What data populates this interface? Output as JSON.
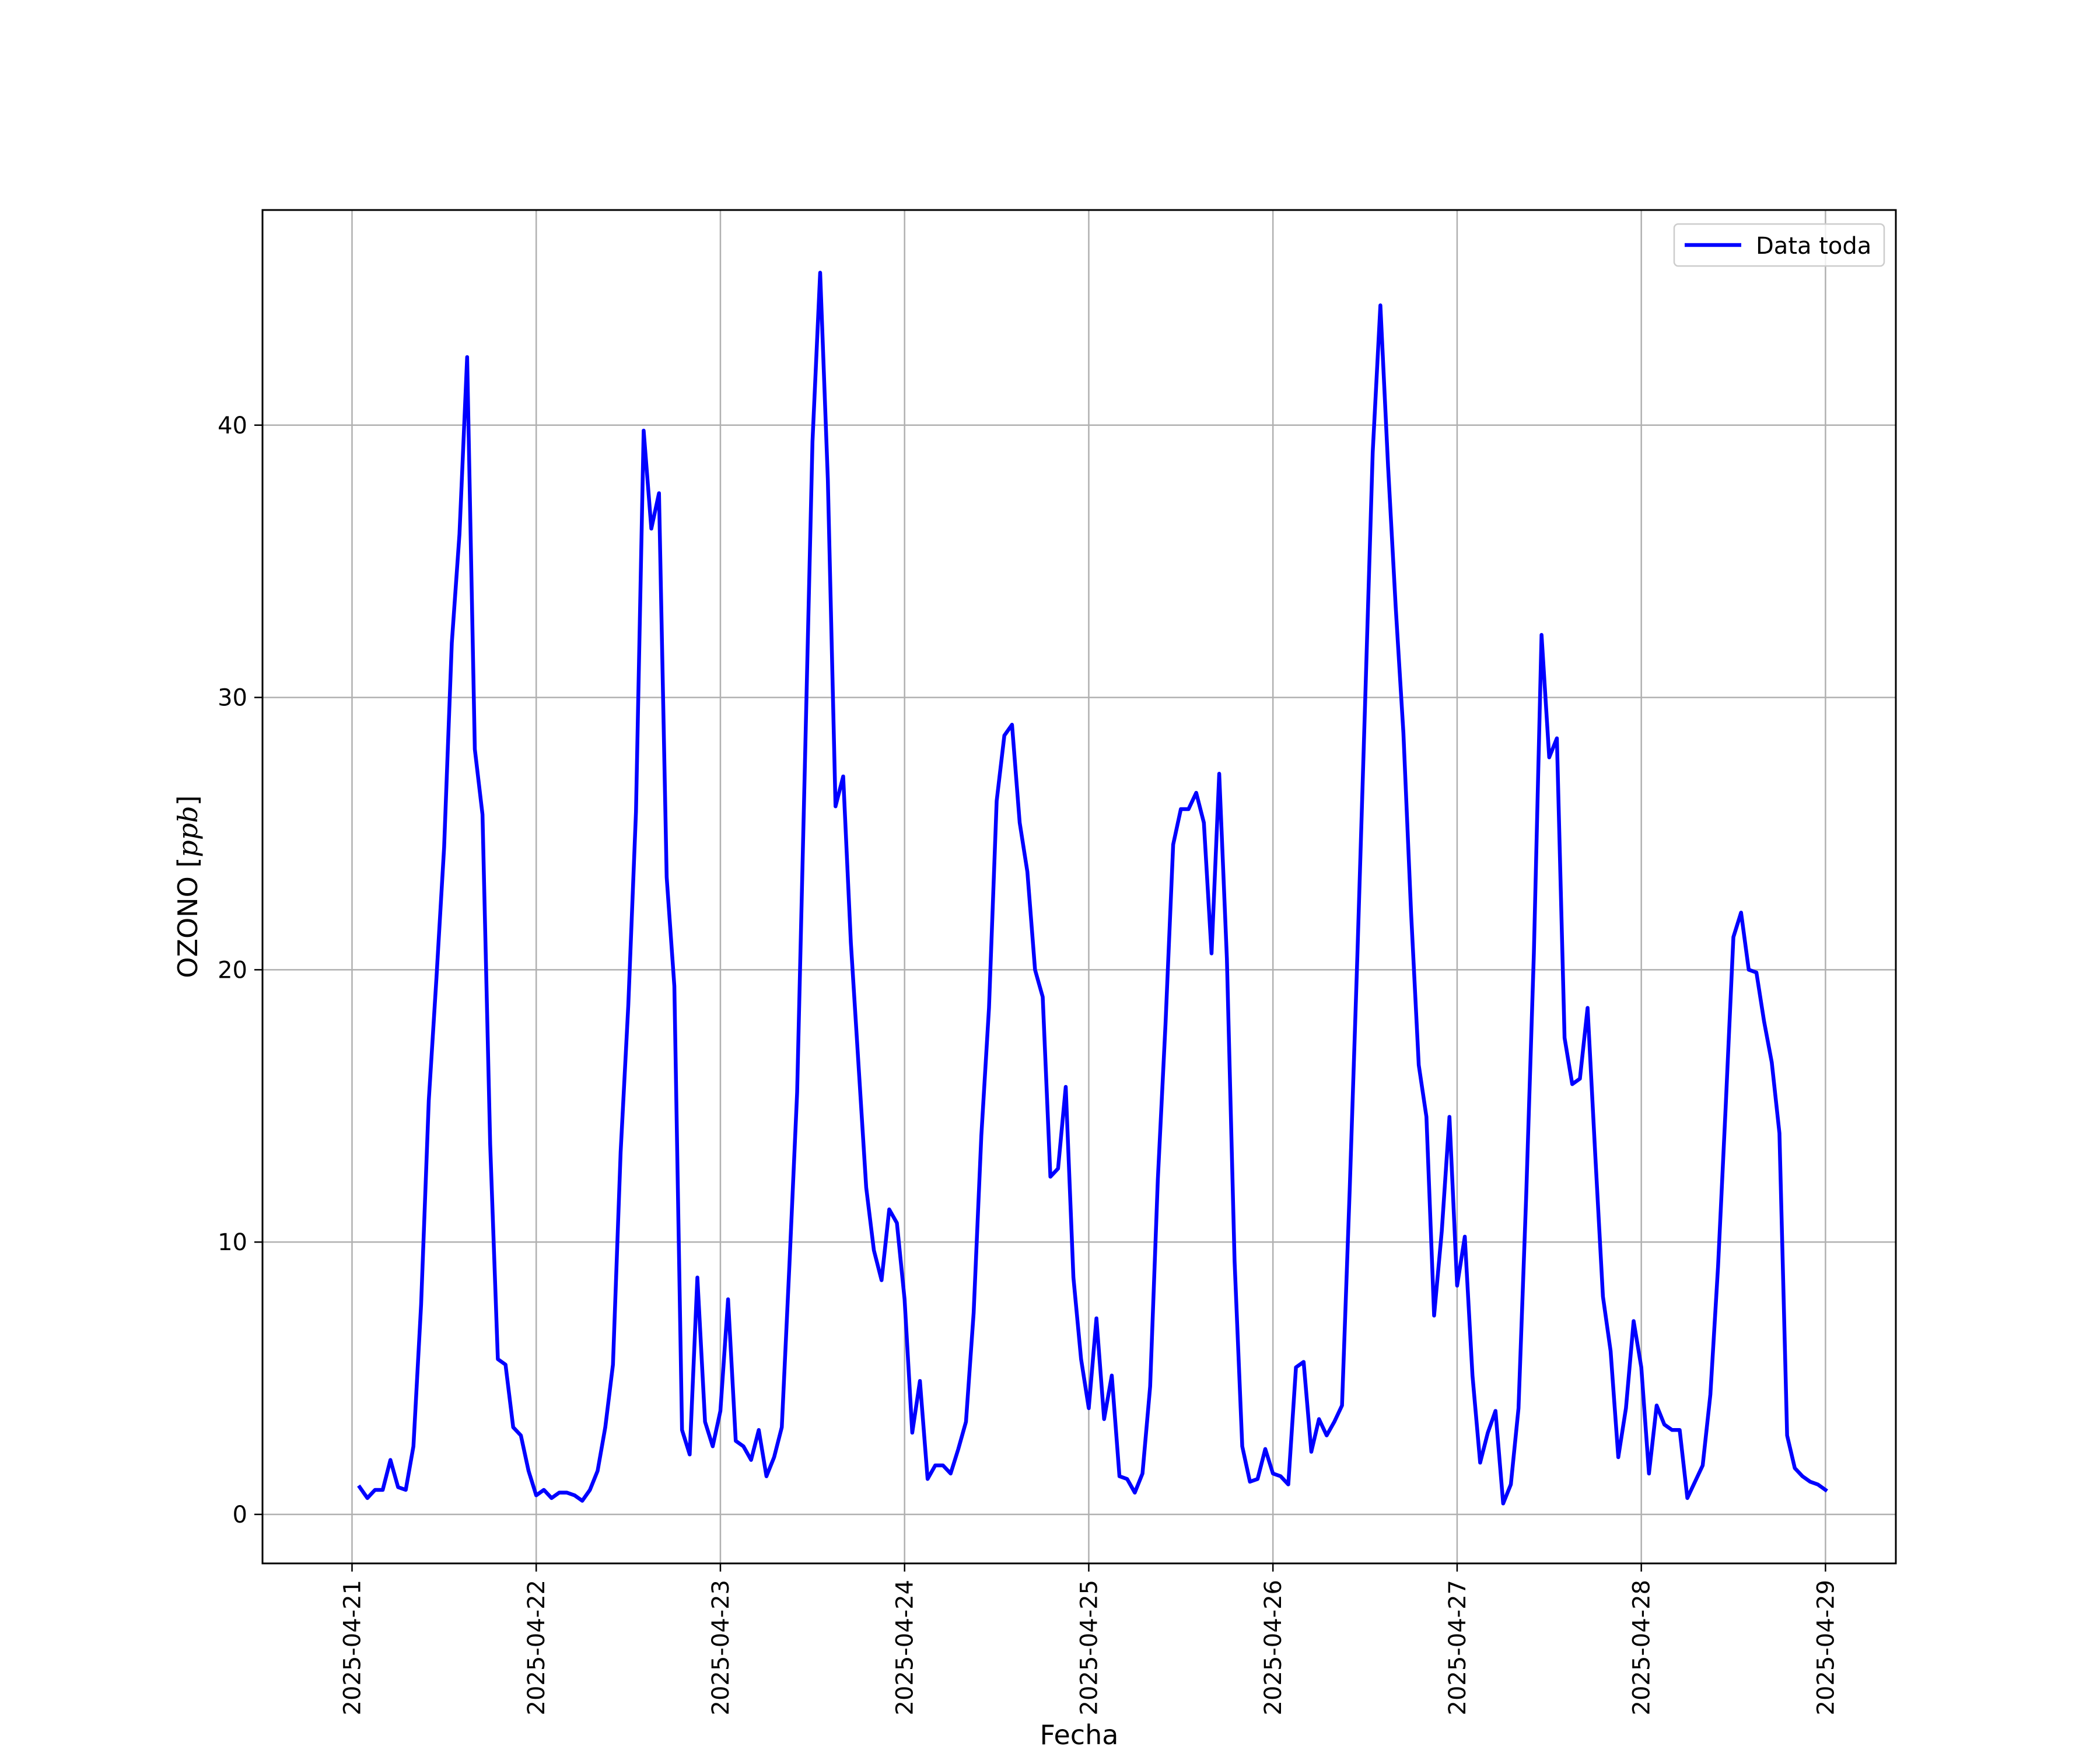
{
  "chart_data": {
    "type": "line",
    "title": "",
    "xlabel": "Fecha",
    "ylabel_text": "OZONO ",
    "ylabel_unit": "ppb",
    "x_ticks": [
      "2025-04-21",
      "2025-04-22",
      "2025-04-23",
      "2025-04-24",
      "2025-04-25",
      "2025-04-26",
      "2025-04-27",
      "2025-04-28",
      "2025-04-29"
    ],
    "y_ticks": [
      0,
      10,
      20,
      30,
      40
    ],
    "xlim": [
      "2025-04-20 12:20",
      "2025-04-29 09:10"
    ],
    "ylim": [
      -1.8,
      47.9
    ],
    "grid": true,
    "legend_position": "upper right",
    "series": [
      {
        "name": "Data toda",
        "color": "#0000ff",
        "x_start": "2025-04-21 01:00",
        "step_hours": 1,
        "values": [
          1.0,
          0.6,
          0.9,
          0.9,
          2.0,
          1.0,
          0.9,
          2.5,
          7.7,
          15.2,
          19.7,
          24.5,
          32.0,
          36.0,
          42.5,
          28.1,
          25.7,
          13.6,
          5.7,
          5.5,
          3.2,
          2.9,
          1.6,
          0.7,
          0.9,
          0.6,
          0.8,
          0.8,
          0.7,
          0.5,
          0.9,
          1.6,
          3.2,
          5.5,
          13.3,
          18.7,
          25.8,
          39.8,
          36.2,
          37.5,
          23.4,
          19.4,
          3.1,
          2.2,
          8.7,
          3.4,
          2.5,
          3.8,
          7.9,
          2.7,
          2.5,
          2.0,
          3.1,
          1.4,
          2.1,
          3.2,
          9.2,
          15.5,
          27.4,
          39.4,
          45.6,
          38.0,
          26.0,
          27.1,
          21.0,
          16.5,
          12.0,
          9.7,
          8.6,
          11.2,
          10.7,
          7.9,
          3.0,
          4.9,
          1.3,
          1.8,
          1.8,
          1.5,
          2.4,
          3.4,
          7.4,
          13.9,
          18.6,
          26.2,
          28.6,
          29.0,
          25.4,
          23.6,
          20.0,
          19.0,
          12.4,
          12.7,
          15.7,
          8.7,
          5.7,
          3.9,
          7.2,
          3.5,
          5.1,
          1.4,
          1.3,
          0.8,
          1.5,
          4.7,
          12.3,
          18.0,
          24.6,
          25.9,
          25.9,
          26.5,
          25.4,
          20.6,
          27.2,
          20.4,
          9.3,
          2.5,
          1.2,
          1.3,
          2.4,
          1.5,
          1.4,
          1.1,
          5.4,
          5.6,
          2.3,
          3.5,
          2.9,
          3.4,
          4.0,
          11.9,
          20.5,
          29.7,
          39.0,
          44.4,
          38.5,
          33.3,
          28.7,
          22.1,
          16.5,
          14.6,
          7.3,
          10.4,
          14.6,
          8.4,
          10.2,
          5.1,
          1.9,
          3.0,
          3.8,
          0.4,
          1.1,
          3.9,
          11.7,
          20.6,
          32.3,
          27.8,
          28.5,
          17.5,
          15.8,
          16.0,
          18.6,
          13.2,
          8.0,
          6.0,
          2.1,
          3.9,
          7.1,
          5.4,
          1.5,
          4.0,
          3.3,
          3.1,
          3.1,
          0.6,
          1.2,
          1.8,
          4.4,
          9.1,
          15.0,
          21.2,
          22.1,
          20.0,
          19.9,
          18.1,
          16.6,
          14.0,
          2.9,
          1.7,
          1.4,
          1.2,
          1.1,
          0.9
        ]
      }
    ]
  }
}
